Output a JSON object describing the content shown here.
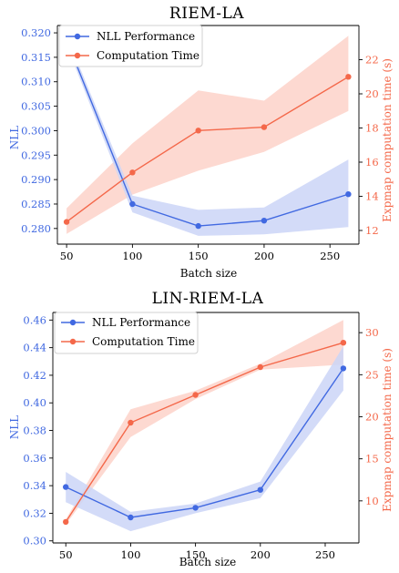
{
  "colors": {
    "nll": "#4169e1",
    "nll_band": "#cbd5f7",
    "time": "#f4684a",
    "time_band": "#fcd0c5",
    "axis": "#000000"
  },
  "chart_data": [
    {
      "type": "line",
      "title": "RIEM-LA",
      "xlabel": "Batch size",
      "ylabel": "NLL",
      "y2label": "Expmap computation time (s)",
      "x": [
        50,
        100,
        150,
        200,
        264
      ],
      "xticks": [
        50,
        100,
        150,
        200,
        250
      ],
      "xlim": [
        43,
        272
      ],
      "ylim": [
        0.2768,
        0.3215
      ],
      "yticks": [
        0.28,
        0.285,
        0.29,
        0.295,
        0.3,
        0.305,
        0.31,
        0.315,
        0.32
      ],
      "yticklabels": [
        "0.280",
        "0.285",
        "0.290",
        "0.295",
        "0.300",
        "0.305",
        "0.310",
        "0.315",
        "0.320"
      ],
      "y2lim": [
        11.2,
        24.0
      ],
      "y2ticks": [
        12,
        14,
        16,
        18,
        20,
        22
      ],
      "y2ticklabels": [
        "12",
        "14",
        "16",
        "18",
        "20",
        "22"
      ],
      "legend": "top-left",
      "grid": false,
      "series": [
        {
          "name": "NLL Performance",
          "axis": "left",
          "values": [
            0.3185,
            0.285,
            0.2805,
            0.2816,
            0.287
          ],
          "lower": [
            0.3175,
            0.2833,
            0.2785,
            0.2788,
            0.2803
          ],
          "upper": [
            0.3195,
            0.2867,
            0.2838,
            0.2843,
            0.2941
          ]
        },
        {
          "name": "Computation Time",
          "axis": "right",
          "values": [
            12.5,
            15.4,
            17.85,
            18.05,
            21.0
          ],
          "lower": [
            11.8,
            14.1,
            15.5,
            16.6,
            19.0
          ],
          "upper": [
            13.3,
            17.1,
            20.2,
            19.6,
            23.4
          ]
        }
      ]
    },
    {
      "type": "line",
      "title": "LIN-RIEM-LA",
      "xlabel": "Batch size",
      "ylabel": "NLL",
      "y2label": "Expmap computation time (s)",
      "x": [
        50,
        100,
        150,
        200,
        264
      ],
      "xticks": [
        50,
        100,
        150,
        200,
        250
      ],
      "xlim": [
        40,
        276
      ],
      "ylim": [
        0.2985,
        0.4655
      ],
      "yticks": [
        0.3,
        0.32,
        0.34,
        0.36,
        0.38,
        0.4,
        0.42,
        0.44,
        0.46
      ],
      "yticklabels": [
        "0.30",
        "0.32",
        "0.34",
        "0.36",
        "0.38",
        "0.40",
        "0.42",
        "0.44",
        "0.46"
      ],
      "y2lim": [
        5.0,
        32.4
      ],
      "y2ticks": [
        10,
        15,
        20,
        25,
        30
      ],
      "y2ticklabels": [
        "10",
        "15",
        "20",
        "25",
        "30"
      ],
      "legend": "top-left",
      "grid": false,
      "series": [
        {
          "name": "NLL Performance",
          "axis": "left",
          "values": [
            0.339,
            0.317,
            0.324,
            0.337,
            0.425
          ],
          "lower": [
            0.328,
            0.307,
            0.32,
            0.331,
            0.409
          ],
          "upper": [
            0.35,
            0.321,
            0.327,
            0.343,
            0.441
          ]
        },
        {
          "name": "Computation Time",
          "axis": "right",
          "values": [
            7.5,
            19.3,
            22.6,
            25.9,
            28.8
          ],
          "lower": [
            7.2,
            17.6,
            22.1,
            25.6,
            26.2
          ],
          "upper": [
            7.8,
            20.9,
            23.1,
            26.3,
            31.5
          ]
        }
      ]
    }
  ]
}
